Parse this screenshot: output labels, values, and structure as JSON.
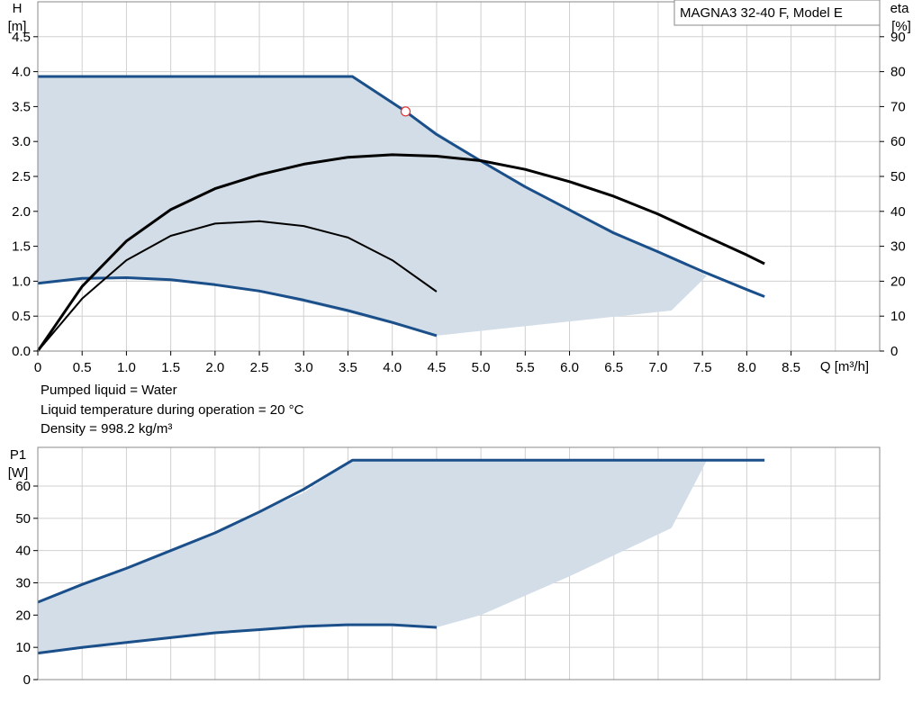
{
  "legend": {
    "model": "MAGNA3 32-40 F, Model E"
  },
  "notes": {
    "liquid": "Pumped liquid = Water",
    "temperature": "Liquid temperature during operation = 20 °C",
    "density": "Density = 998.2 kg/m³"
  },
  "colors": {
    "curve": "#1a4f8a",
    "envelope": "#d3dde8",
    "efficiency": "#000000",
    "grid": "#d0d0d0",
    "duty_point": "#e03030"
  },
  "chart_data": [
    {
      "type": "line",
      "name": "head-efficiency",
      "ylabel_lines": [
        "H",
        "[m]"
      ],
      "y2label_lines": [
        "eta",
        "[%]"
      ],
      "xlabel": "Q [m³/h]",
      "xlim": [
        0,
        9.5
      ],
      "ylim": [
        0,
        5.0
      ],
      "y2lim": [
        0,
        100
      ],
      "xticks": [
        "0",
        "0.5",
        "1.0",
        "1.5",
        "2.0",
        "2.5",
        "3.0",
        "3.5",
        "4.0",
        "4.5",
        "5.0",
        "5.5",
        "6.0",
        "6.5",
        "7.0",
        "7.5",
        "8.0",
        "8.5"
      ],
      "yticks": [
        "0.0",
        "0.5",
        "1.0",
        "1.5",
        "2.0",
        "2.5",
        "3.0",
        "3.5",
        "4.0",
        "4.5"
      ],
      "y2ticks": [
        "0",
        "10",
        "20",
        "30",
        "40",
        "50",
        "60",
        "70",
        "80",
        "90"
      ],
      "grid": true,
      "envelope": [
        [
          0,
          3.93
        ],
        [
          3.55,
          3.93
        ],
        [
          4.15,
          3.43
        ],
        [
          5.0,
          2.72
        ],
        [
          6.0,
          2.02
        ],
        [
          7.0,
          1.42
        ],
        [
          7.55,
          1.08
        ],
        [
          7.15,
          0.58
        ],
        [
          4.5,
          0.22
        ],
        [
          3.5,
          0.55
        ],
        [
          2.5,
          0.85
        ],
        [
          1.5,
          1.02
        ],
        [
          1.0,
          1.05
        ],
        [
          0,
          0.97
        ]
      ],
      "series": [
        {
          "role": "max-head",
          "x": [
            0,
            3.55,
            4.15,
            4.5,
            5.0,
            5.5,
            6.0,
            6.5,
            7.0,
            7.5,
            8.0,
            8.2
          ],
          "y": [
            3.93,
            3.93,
            3.43,
            3.1,
            2.72,
            2.35,
            2.02,
            1.69,
            1.42,
            1.14,
            0.88,
            0.78
          ]
        },
        {
          "role": "min-head",
          "x": [
            0,
            0.5,
            1.0,
            1.5,
            2.0,
            2.5,
            3.0,
            3.5,
            4.0,
            4.5
          ],
          "y": [
            0.97,
            1.04,
            1.05,
            1.02,
            0.95,
            0.86,
            0.73,
            0.58,
            0.41,
            0.22
          ]
        },
        {
          "role": "eta-max",
          "axis": "y2",
          "x": [
            0,
            0.5,
            1.0,
            1.5,
            2.0,
            2.5,
            3.0,
            3.5,
            4.0,
            4.5,
            5.0,
            5.5,
            6.0,
            6.5,
            7.0,
            7.5,
            8.0,
            8.2
          ],
          "y": [
            0,
            18.5,
            31.5,
            40.5,
            46.5,
            50.5,
            53.5,
            55.5,
            56.2,
            55.8,
            54.5,
            52.0,
            48.5,
            44.3,
            39.2,
            33.3,
            27.5,
            25.0
          ]
        },
        {
          "role": "eta-min",
          "axis": "y2",
          "x": [
            0,
            0.5,
            1.0,
            1.5,
            2.0,
            2.5,
            3.0,
            3.5,
            4.0,
            4.5
          ],
          "y": [
            0,
            15.0,
            26.0,
            33.0,
            36.5,
            37.2,
            35.8,
            32.5,
            26.0,
            17.0
          ]
        }
      ],
      "duty_point": {
        "x": 4.15,
        "y": 3.43
      }
    },
    {
      "type": "line",
      "name": "power",
      "ylabel_lines": [
        "P1",
        "[W]"
      ],
      "xlim": [
        0,
        9.5
      ],
      "ylim": [
        0,
        72
      ],
      "yticks": [
        "0",
        "10",
        "20",
        "30",
        "40",
        "50",
        "60"
      ],
      "grid": true,
      "envelope": [
        [
          0,
          24
        ],
        [
          1.0,
          34.5
        ],
        [
          2.0,
          45
        ],
        [
          2.5,
          52
        ],
        [
          3.0,
          58
        ],
        [
          3.55,
          68
        ],
        [
          7.55,
          68
        ],
        [
          7.15,
          47
        ],
        [
          6.0,
          32
        ],
        [
          5.0,
          20
        ],
        [
          4.5,
          16.2
        ],
        [
          3.5,
          17
        ],
        [
          2.5,
          15.5
        ],
        [
          1.5,
          13
        ],
        [
          1.0,
          11.5
        ],
        [
          0,
          8.2
        ]
      ],
      "series": [
        {
          "role": "max-power",
          "x": [
            0,
            0.5,
            1.0,
            1.5,
            2.0,
            2.5,
            3.0,
            3.55,
            8.2
          ],
          "y": [
            24,
            29.5,
            34.5,
            40,
            45.5,
            52,
            59,
            68,
            68
          ]
        },
        {
          "role": "min-power",
          "x": [
            0,
            0.5,
            1.0,
            1.5,
            2.0,
            2.5,
            3.0,
            3.5,
            4.0,
            4.5
          ],
          "y": [
            8.2,
            10,
            11.5,
            13,
            14.5,
            15.5,
            16.5,
            17,
            17,
            16.2
          ]
        }
      ]
    }
  ]
}
